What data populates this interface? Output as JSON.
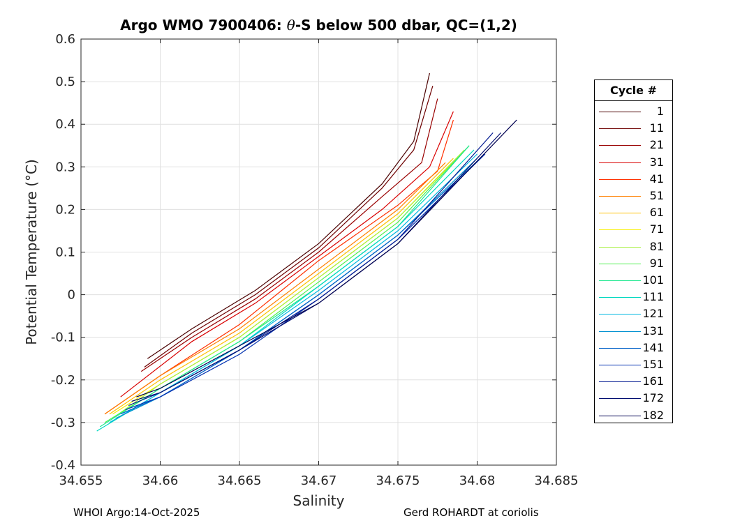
{
  "title": {
    "prefix": "Argo WMO 7900406: ",
    "theta": "θ",
    "suffix": "-S below 500 dbar,  QC=(1,2)"
  },
  "footer": {
    "left": "WHOI Argo:14-Oct-2025",
    "right": "Gerd ROHARDT at coriolis"
  },
  "colors": {
    "background": "#ffffff",
    "axes_bg": "#ffffff",
    "grid": "#e0e0e0",
    "axis": "#262626"
  },
  "chart_data": {
    "type": "line",
    "title": "Argo WMO 7900406: θ-S below 500 dbar,  QC=(1,2)",
    "xlabel": "Salinity",
    "ylabel": "Potential Temperature (°C)",
    "xlim": [
      34.655,
      34.685
    ],
    "ylim": [
      -0.4,
      0.6
    ],
    "x_ticks": [
      "34.655",
      "34.66",
      "34.665",
      "34.67",
      "34.675",
      "34.68",
      "34.685"
    ],
    "y_ticks": [
      "-0.4",
      "-0.3",
      "-0.2",
      "-0.1",
      "0",
      "0.1",
      "0.2",
      "0.3",
      "0.4",
      "0.5",
      "0.6"
    ],
    "grid": true,
    "legend_title": "Cycle #",
    "legend_placement": "right-outside",
    "series": [
      {
        "name": "1",
        "color": "#4a0000",
        "x": [
          34.6592,
          34.662,
          34.666,
          34.67,
          34.674,
          34.676,
          34.677
        ],
        "y": [
          -0.15,
          -0.08,
          0.01,
          0.12,
          0.26,
          0.36,
          0.52
        ]
      },
      {
        "name": "11",
        "color": "#6e0000",
        "x": [
          34.659,
          34.662,
          34.666,
          34.67,
          34.674,
          34.676,
          34.6772
        ],
        "y": [
          -0.17,
          -0.09,
          0.0,
          0.11,
          0.25,
          0.34,
          0.49
        ]
      },
      {
        "name": "21",
        "color": "#990000",
        "x": [
          34.6588,
          34.662,
          34.666,
          34.67,
          34.674,
          34.6765,
          34.6775
        ],
        "y": [
          -0.18,
          -0.1,
          -0.01,
          0.1,
          0.23,
          0.31,
          0.46
        ]
      },
      {
        "name": "31",
        "color": "#d90000",
        "x": [
          34.6575,
          34.662,
          34.666,
          34.67,
          34.674,
          34.677,
          34.6785
        ],
        "y": [
          -0.24,
          -0.11,
          -0.02,
          0.09,
          0.2,
          0.3,
          0.43
        ]
      },
      {
        "name": "41",
        "color": "#ff3000",
        "x": [
          34.6565,
          34.66,
          34.665,
          34.67,
          34.675,
          34.6775,
          34.6785
        ],
        "y": [
          -0.28,
          -0.19,
          -0.07,
          0.08,
          0.21,
          0.29,
          0.41
        ]
      },
      {
        "name": "51",
        "color": "#ff8000",
        "x": [
          34.6565,
          34.66,
          34.665,
          34.67,
          34.675,
          34.678
        ],
        "y": [
          -0.28,
          -0.19,
          -0.08,
          0.06,
          0.2,
          0.31
        ]
      },
      {
        "name": "61",
        "color": "#ffc000",
        "x": [
          34.6568,
          34.66,
          34.665,
          34.67,
          34.675,
          34.6785
        ],
        "y": [
          -0.28,
          -0.2,
          -0.09,
          0.05,
          0.19,
          0.32
        ]
      },
      {
        "name": "71",
        "color": "#f8f000",
        "x": [
          34.657,
          34.66,
          34.665,
          34.67,
          34.675,
          34.679
        ],
        "y": [
          -0.28,
          -0.21,
          -0.1,
          0.04,
          0.18,
          0.33
        ]
      },
      {
        "name": "81",
        "color": "#a8f040",
        "x": [
          34.657,
          34.66,
          34.665,
          34.67,
          34.675,
          34.6792
        ],
        "y": [
          -0.29,
          -0.21,
          -0.1,
          0.04,
          0.18,
          0.34
        ]
      },
      {
        "name": "91",
        "color": "#50f050",
        "x": [
          34.6565,
          34.66,
          34.665,
          34.67,
          34.675,
          34.6795
        ],
        "y": [
          -0.3,
          -0.22,
          -0.11,
          0.03,
          0.17,
          0.35
        ]
      },
      {
        "name": "101",
        "color": "#20e890",
        "x": [
          34.6562,
          34.66,
          34.665,
          34.67,
          34.675,
          34.6795
        ],
        "y": [
          -0.31,
          -0.22,
          -0.11,
          0.02,
          0.16,
          0.35
        ]
      },
      {
        "name": "111",
        "color": "#00d8c0",
        "x": [
          34.656,
          34.66,
          34.665,
          34.67,
          34.675,
          34.6798
        ],
        "y": [
          -0.32,
          -0.23,
          -0.12,
          0.02,
          0.16,
          0.34
        ]
      },
      {
        "name": "121",
        "color": "#00b8e0",
        "x": [
          34.6568,
          34.66,
          34.665,
          34.67,
          34.675,
          34.68
        ],
        "y": [
          -0.3,
          -0.23,
          -0.12,
          0.01,
          0.15,
          0.33
        ]
      },
      {
        "name": "131",
        "color": "#0090d0",
        "x": [
          34.6572,
          34.66,
          34.665,
          34.67,
          34.675,
          34.68
        ],
        "y": [
          -0.29,
          -0.24,
          -0.13,
          0.0,
          0.14,
          0.32
        ]
      },
      {
        "name": "141",
        "color": "#0060c8",
        "x": [
          34.6575,
          34.66,
          34.665,
          34.67,
          34.675,
          34.6802
        ],
        "y": [
          -0.28,
          -0.24,
          -0.13,
          0.0,
          0.14,
          0.32
        ]
      },
      {
        "name": "151",
        "color": "#0030b0",
        "x": [
          34.6578,
          34.66,
          34.665,
          34.67,
          34.675,
          34.6805
        ],
        "y": [
          -0.27,
          -0.24,
          -0.14,
          -0.01,
          0.13,
          0.33
        ]
      },
      {
        "name": "161",
        "color": "#001890",
        "x": [
          34.658,
          34.66,
          34.665,
          34.67,
          34.675,
          34.681
        ],
        "y": [
          -0.26,
          -0.23,
          -0.13,
          -0.01,
          0.13,
          0.38
        ]
      },
      {
        "name": "172",
        "color": "#000c70",
        "x": [
          34.6582,
          34.66,
          34.665,
          34.67,
          34.675,
          34.6815
        ],
        "y": [
          -0.25,
          -0.23,
          -0.13,
          -0.02,
          0.12,
          0.38
        ]
      },
      {
        "name": "182",
        "color": "#000050",
        "x": [
          34.6585,
          34.66,
          34.665,
          34.67,
          34.675,
          34.6825
        ],
        "y": [
          -0.24,
          -0.22,
          -0.12,
          -0.02,
          0.12,
          0.41
        ]
      }
    ]
  }
}
